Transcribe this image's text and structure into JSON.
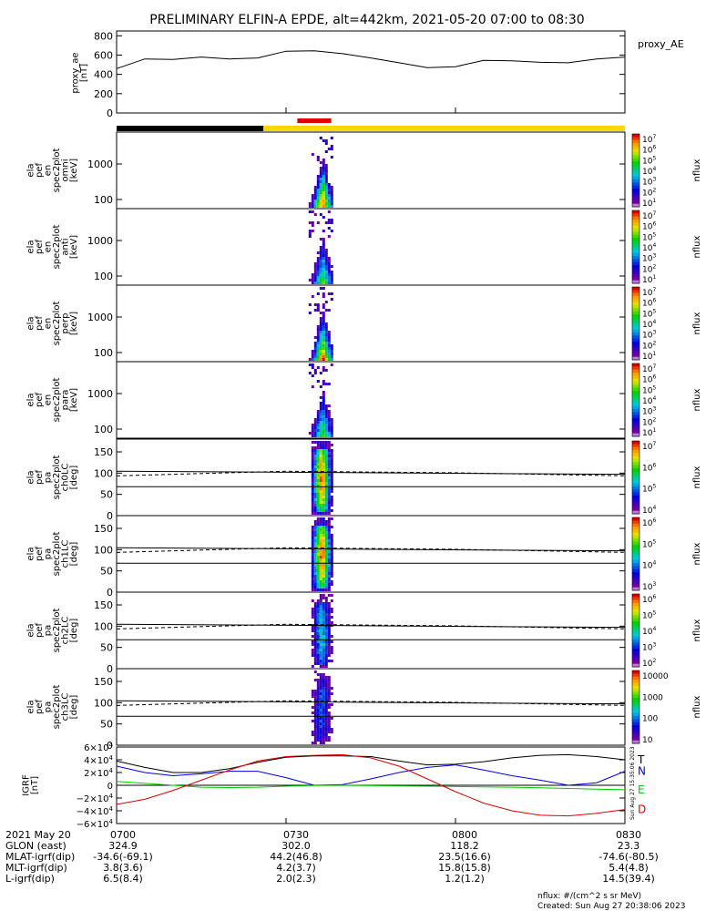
{
  "title": "PRELIMINARY ELFIN-A EPDE, alt=442km, 2021-05-20 07:00 to 08:30",
  "colors": {
    "red": "#e00000",
    "black": "#000000",
    "yellow": "#ffd700",
    "blue": "#0000ee",
    "green": "#00cc00"
  },
  "chart_data": [
    {
      "type": "line",
      "name": "proxy_ae",
      "ylabel": [
        "proxy_ae",
        "[nT]"
      ],
      "legend": "proxy_AE",
      "ylim": [
        0,
        850
      ],
      "yticks": [
        "800",
        "600",
        "400",
        "200",
        "0"
      ],
      "x_minutes": [
        0,
        5,
        10,
        15,
        20,
        25,
        30,
        35,
        40,
        45,
        50,
        55,
        60,
        65,
        70,
        75,
        80,
        85,
        90
      ],
      "values": [
        460,
        560,
        555,
        580,
        560,
        570,
        640,
        645,
        615,
        570,
        520,
        470,
        480,
        545,
        540,
        525,
        520,
        560,
        580
      ]
    },
    {
      "type": "heatmap",
      "name": "orbit-status-bar",
      "segments": [
        {
          "from": 0,
          "to": 26,
          "color": "black"
        },
        {
          "from": 26,
          "to": 90,
          "color": "yellow"
        }
      ],
      "marker": {
        "from": 32,
        "to": 38,
        "color": "red"
      }
    },
    {
      "type": "heatmap",
      "name": "energy-spectrograms",
      "panels": [
        {
          "ylabel": [
            "ela",
            "pef",
            "en",
            "spec2plot",
            "omni",
            "[keV]"
          ],
          "yticks": [
            "1000",
            "100"
          ],
          "cbar_ticks": [
            "10^7",
            "10^6",
            "10^5",
            "10^4",
            "10^3",
            "10^2",
            "10^1"
          ],
          "cbar_label": "nflux"
        },
        {
          "ylabel": [
            "ela",
            "pef",
            "en",
            "spec2plot",
            "anti",
            "[keV]"
          ],
          "yticks": [
            "1000",
            "100"
          ],
          "cbar_ticks": [
            "10^7",
            "10^6",
            "10^5",
            "10^4",
            "10^3",
            "10^2",
            "10^1"
          ],
          "cbar_label": "nflux"
        },
        {
          "ylabel": [
            "ela",
            "pef",
            "en",
            "spec2plot",
            "perp",
            "[keV]"
          ],
          "yticks": [
            "1000",
            "100"
          ],
          "cbar_ticks": [
            "10^7",
            "10^6",
            "10^5",
            "10^4",
            "10^3",
            "10^2",
            "10^1"
          ],
          "cbar_label": "nflux"
        },
        {
          "ylabel": [
            "ela",
            "pef",
            "en",
            "spec2plot",
            "para",
            "[keV]"
          ],
          "yticks": [
            "1000",
            "100"
          ],
          "cbar_ticks": [
            "10^7",
            "10^6",
            "10^5",
            "10^4",
            "10^3",
            "10^2",
            "10^1"
          ],
          "cbar_label": "nflux"
        }
      ]
    },
    {
      "type": "heatmap",
      "name": "pitch-angle-spectrograms",
      "panels": [
        {
          "ylabel": [
            "ela",
            "pef",
            "pa",
            "spec2plot",
            "ch0LC",
            "[deg]"
          ],
          "yticks": [
            "150",
            "100",
            "50",
            "0"
          ],
          "cbar_ticks": [
            "10^7",
            "10^6",
            "10^5",
            "10^4"
          ],
          "cbar_label": "nflux"
        },
        {
          "ylabel": [
            "ela",
            "pef",
            "pa",
            "spec2plot",
            "ch1LC",
            "[deg]"
          ],
          "yticks": [
            "150",
            "100",
            "50",
            "0"
          ],
          "cbar_ticks": [
            "10^6",
            "10^5",
            "10^4",
            "10^3"
          ],
          "cbar_label": "nflux"
        },
        {
          "ylabel": [
            "ela",
            "pef",
            "pa",
            "spec2plot",
            "ch2LC",
            "[deg]"
          ],
          "yticks": [
            "150",
            "100",
            "50",
            "0"
          ],
          "cbar_ticks": [
            "10^6",
            "10^5",
            "10^4",
            "10^3",
            "10^2"
          ],
          "cbar_label": "nflux"
        },
        {
          "ylabel": [
            "ela",
            "pef",
            "pa",
            "spec2plot",
            "ch3LC",
            "[deg]"
          ],
          "yticks": [
            "150",
            "100",
            "50",
            "0"
          ],
          "cbar_ticks": [
            "10000",
            "1000",
            "100",
            "10"
          ],
          "cbar_label": "nflux"
        }
      ]
    },
    {
      "type": "line",
      "name": "igrf",
      "ylabel": [
        "IGRF",
        "[nT]"
      ],
      "ylim": [
        -60000,
        60000
      ],
      "yticks": [
        "6×10^4",
        "4×10^4",
        "2×10^4",
        "0",
        "−2×10^4",
        "−4×10^4",
        "−6×10^4"
      ],
      "x_minutes": [
        0,
        5,
        10,
        15,
        20,
        25,
        30,
        35,
        40,
        45,
        50,
        55,
        60,
        65,
        70,
        75,
        80,
        85,
        90
      ],
      "series": [
        {
          "name": "T",
          "color": "black",
          "values": [
            38000,
            28000,
            20000,
            20000,
            26000,
            36000,
            44000,
            46000,
            46000,
            45000,
            38000,
            32000,
            33000,
            37000,
            43000,
            47000,
            48000,
            45000,
            40000
          ]
        },
        {
          "name": "N",
          "color": "blue",
          "values": [
            30000,
            20000,
            15000,
            18000,
            22000,
            22000,
            12000,
            0,
            1000,
            10000,
            20000,
            28000,
            32000,
            24000,
            15000,
            8000,
            0,
            4000,
            22000
          ]
        },
        {
          "name": "E",
          "color": "green",
          "values": [
            6000,
            3000,
            0,
            -3000,
            -3500,
            -3000,
            -1500,
            -400,
            0,
            -500,
            -1000,
            -1500,
            -2000,
            -2500,
            -3000,
            -4000,
            -5000,
            -6000,
            -7000
          ]
        },
        {
          "name": "D",
          "color": "red",
          "values": [
            -30000,
            -22000,
            -8000,
            8000,
            24000,
            38000,
            45000,
            47000,
            48000,
            43000,
            30000,
            10000,
            -10000,
            -28000,
            -40000,
            -47000,
            -48000,
            -44000,
            -38000
          ]
        }
      ],
      "side_note": "Sun Aug 27 15:35:06 2023"
    }
  ],
  "time_axis": {
    "ticks": [
      "0700",
      "0730",
      "0800",
      "0830"
    ]
  },
  "ephemeris": {
    "rows": [
      {
        "label": "2021 May 20",
        "values": [
          "0700",
          "0730",
          "0800",
          "0830"
        ]
      },
      {
        "label": "GLON (east)",
        "values": [
          "324.9",
          "302.0",
          "118.2",
          "23.3"
        ]
      },
      {
        "label": "MLAT-igrf(dip)",
        "values": [
          "-34.6(-69.1)",
          "44.2(46.8)",
          "23.5(16.6)",
          "-74.6(-80.5)"
        ]
      },
      {
        "label": "MLT-igrf(dip)",
        "values": [
          "3.8(3.6)",
          "4.2(3.7)",
          "15.8(15.8)",
          "5.4(4.8)"
        ]
      },
      {
        "label": "L-igrf(dip)",
        "values": [
          "6.5(8.4)",
          "2.0(2.3)",
          "1.2(1.2)",
          "14.5(39.4)"
        ]
      }
    ]
  },
  "footer": {
    "units": "nflux: #/(cm^2 s sr MeV)",
    "created": "Created: Sun Aug 27 20:38:06 2023"
  }
}
